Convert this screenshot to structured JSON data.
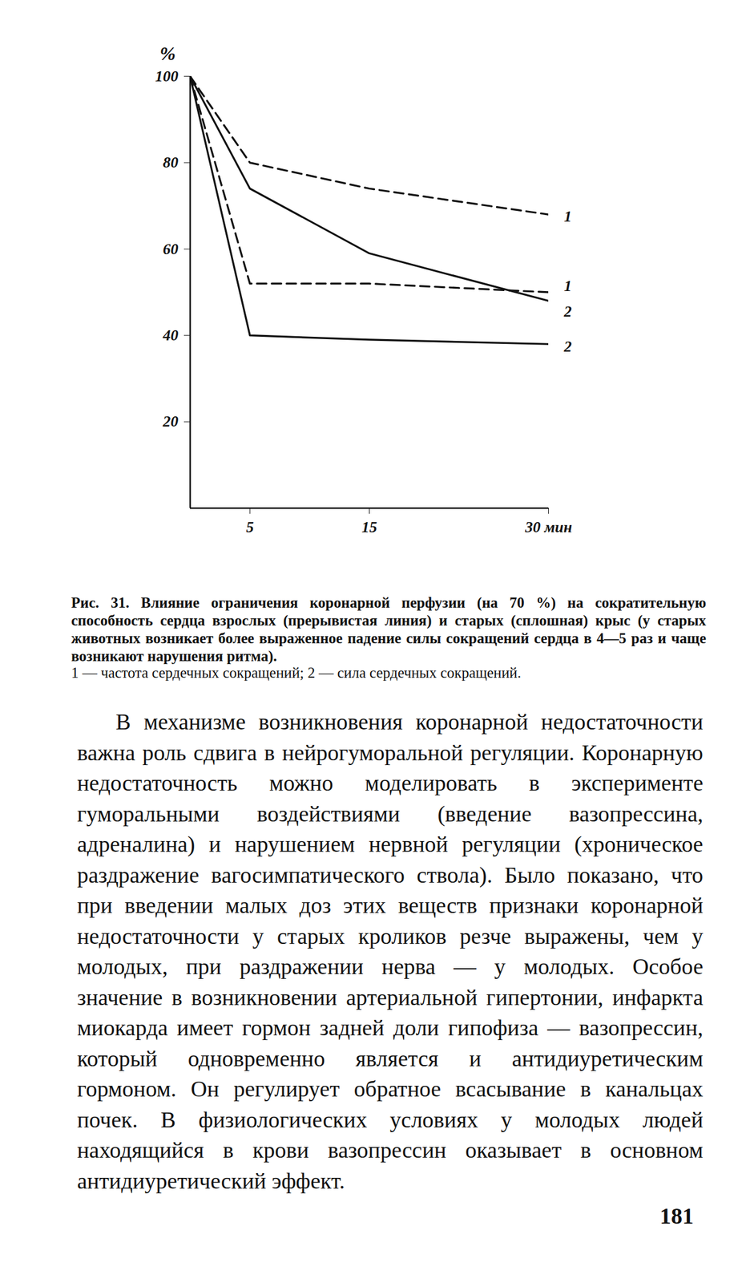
{
  "chart_data": {
    "type": "line",
    "y_label": "%",
    "x": [
      0,
      5,
      15,
      30
    ],
    "xlim": [
      0,
      30
    ],
    "xticks": [
      5,
      15,
      {
        "value": 30,
        "label": "30 мин"
      }
    ],
    "ylim": [
      0,
      100
    ],
    "yticks": [
      20,
      40,
      60,
      80,
      100
    ],
    "series": [
      {
        "name": "1",
        "color": "#111111",
        "line_style": "dashed",
        "values": [
          100,
          80,
          74,
          68
        ]
      },
      {
        "name": "1",
        "color": "#111111",
        "line_style": "dashed",
        "values": [
          100,
          52,
          52,
          50
        ]
      },
      {
        "name": "2",
        "color": "#111111",
        "line_style": "solid",
        "values": [
          100,
          74,
          59,
          48
        ]
      },
      {
        "name": "2",
        "color": "#111111",
        "line_style": "solid",
        "values": [
          100,
          40,
          39,
          38
        ]
      }
    ],
    "caption": "Рис. 31. Влияние ограничения коронарной перфузии (на 70 %) на сократительную способность сердца взрослых (прерывистая линия) и старых (сплошная) крыс (у старых животных возникает более выраженное падение силы сокращений сердца в 4—5 раз и чаще возникают нарушения ритма).",
    "legend_text": "1 — частота сердечных сокращений; 2 — сила сердечных сокращений."
  },
  "document": {
    "paragraph": "В механизме возникновения коронарной недостаточности важна роль сдвига в нейрогуморальной регуляции. Коронарную недостаточность можно моделировать в эксперименте гуморальными воздействиями (введение вазопрессина, адреналина) и нарушением нервной регуляции (хроническое раздражение вагосимпатического ствола). Было показано, что при введении малых доз этих веществ признаки коронарной недостаточности у старых кроликов резче выражены, чем у молодых, при раздражении нерва — у молодых. Особое значение в возникновении артериальной гипертонии, инфаркта миокарда имеет гормон задней доли гипофиза — вазопрессин, который одновременно является и антидиуретическим гормоном. Он регулирует обратное всасывание в канальцах почек. В физиологических условиях у молодых людей находящийся в крови вазопрессин оказывает в основном антидиуретический эффект.",
    "page_number": "181"
  }
}
